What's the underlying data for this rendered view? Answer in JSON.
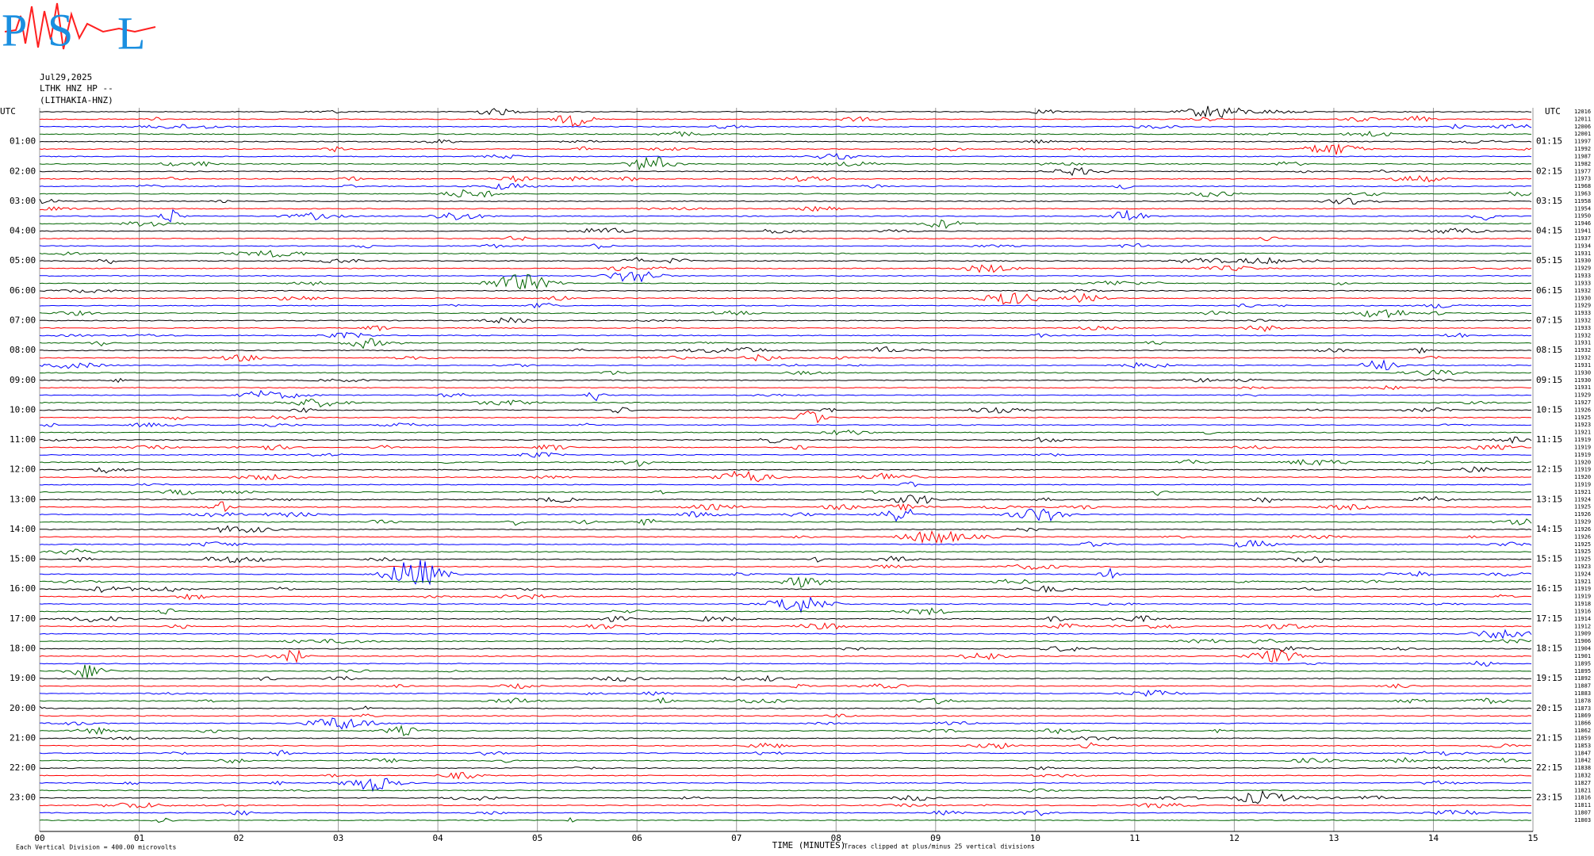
{
  "logo": {
    "initials": [
      "P",
      "S",
      "L"
    ]
  },
  "header": {
    "date": "Jul29,2025",
    "station": "LTHK HNZ HP --",
    "location": "(LITHAKIA-HNZ)"
  },
  "left_unit": "UTC",
  "right_unit": "UTC",
  "trace_colors": [
    "#000000",
    "#ff0000",
    "#0000ff",
    "#006400"
  ],
  "hour_labels": [
    "01:00",
    "02:00",
    "03:00",
    "04:00",
    "05:00",
    "06:00",
    "07:00",
    "08:00",
    "09:00",
    "10:00",
    "11:00",
    "12:00",
    "13:00",
    "14:00",
    "15:00",
    "16:00",
    "17:00",
    "18:00",
    "19:00",
    "20:00",
    "21:00",
    "22:00",
    "23:00"
  ],
  "right_labels": [
    "01:15",
    "02:15",
    "03:15",
    "04:15",
    "05:15",
    "06:15",
    "07:15",
    "08:15",
    "09:15",
    "10:15",
    "11:15",
    "12:15",
    "13:15",
    "14:15",
    "15:15",
    "16:15",
    "17:15",
    "18:15",
    "19:15",
    "20:15",
    "21:15",
    "22:15",
    "23:15"
  ],
  "trace_offsets": [
    12016,
    12011,
    12006,
    12001,
    11997,
    11992,
    11987,
    11982,
    11977,
    11973,
    11968,
    11963,
    11958,
    11954,
    11950,
    11946,
    11941,
    11937,
    11934,
    11931,
    11930,
    11929,
    11933,
    11933,
    11932,
    11930,
    11929,
    11933,
    11932,
    11933,
    11932,
    11931,
    11932,
    11932,
    11931,
    11930,
    11930,
    11931,
    11929,
    11927,
    11926,
    11925,
    11923,
    11921,
    11919,
    11919,
    11919,
    11920,
    11919,
    11920,
    11919,
    11921,
    11924,
    11925,
    11926,
    11929,
    11926,
    11926,
    11925,
    11925,
    11925,
    11923,
    11924,
    11921,
    11919,
    11919,
    11918,
    11916,
    11914,
    11912,
    11909,
    11906,
    11904,
    11901,
    11895,
    11895,
    11892,
    11887,
    11883,
    11878,
    11873,
    11869,
    11866,
    11862,
    11859,
    11853,
    11847,
    11842,
    11838,
    11832,
    11827,
    11821,
    11816,
    11811,
    11807,
    11803
  ],
  "x_axis": {
    "label": "TIME (MINUTES)",
    "xlim": [
      0,
      15
    ],
    "xticks": [
      {
        "value": 0,
        "label": "00"
      },
      {
        "value": 1,
        "label": "01"
      },
      {
        "value": 2,
        "label": "02"
      },
      {
        "value": 3,
        "label": "03"
      },
      {
        "value": 4,
        "label": "04"
      },
      {
        "value": 5,
        "label": "05"
      },
      {
        "value": 6,
        "label": "06"
      },
      {
        "value": 7,
        "label": "07"
      },
      {
        "value": 8,
        "label": "08"
      },
      {
        "value": 9,
        "label": "09"
      },
      10,
      11,
      12,
      13,
      14,
      15
    ]
  },
  "footer": {
    "scale_note": "Each Vertical Division =  400.00 microvolts",
    "clip_note": "Traces clipped at plus/minus 25 vertical divisions"
  }
}
